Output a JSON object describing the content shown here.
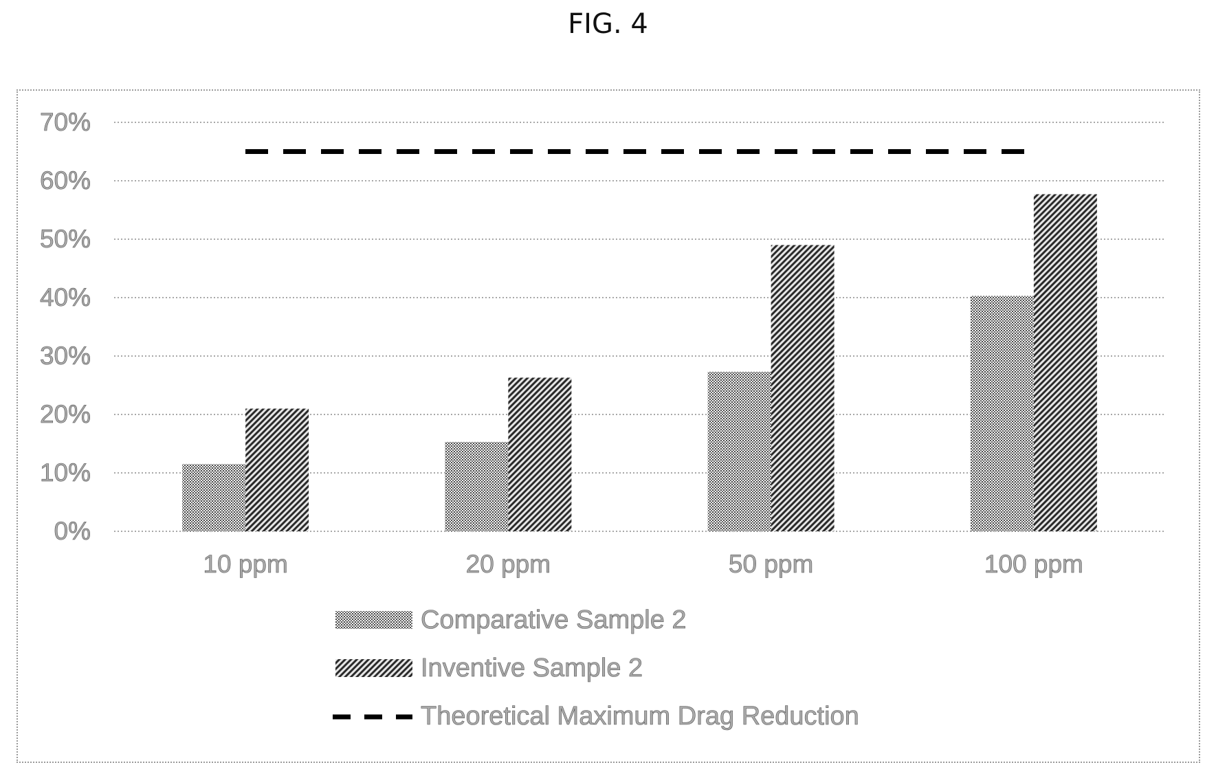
{
  "figure_label": "FIG. 4",
  "chart_data": {
    "type": "bar",
    "categories": [
      "10 ppm",
      "20 ppm",
      "50 ppm",
      "100 ppm"
    ],
    "series": [
      {
        "name": "Comparative Sample 2",
        "values": [
          11.5,
          15.3,
          27.3,
          40.3
        ],
        "pattern": "dotted-gray"
      },
      {
        "name": "Inventive Sample 2",
        "values": [
          21.0,
          26.3,
          49.0,
          57.7
        ],
        "pattern": "diagonal-hatch"
      }
    ],
    "reference_line": {
      "name": "Theoretical Maximum Drag Reduction",
      "value": 65,
      "style": "dashed"
    },
    "y_ticks": [
      "0%",
      "10%",
      "20%",
      "30%",
      "40%",
      "50%",
      "60%",
      "70%"
    ],
    "ylim": [
      0,
      70
    ],
    "grid": true,
    "legend_position": "bottom"
  }
}
